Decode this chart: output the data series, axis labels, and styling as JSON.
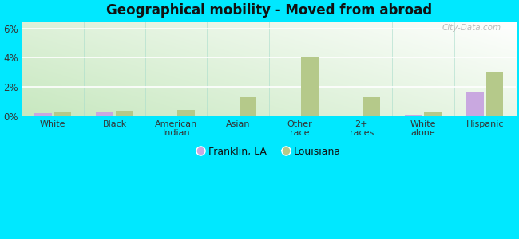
{
  "title": "Geographical mobility - Moved from abroad",
  "categories": [
    "White",
    "Black",
    "American\nIndian",
    "Asian",
    "Other\nrace",
    "2+\nraces",
    "White\nalone",
    "Hispanic"
  ],
  "franklin_values": [
    0.2,
    0.3,
    0.0,
    0.0,
    0.0,
    0.0,
    0.1,
    1.7
  ],
  "louisiana_values": [
    0.35,
    0.4,
    0.45,
    1.3,
    4.05,
    1.3,
    0.3,
    3.0
  ],
  "franklin_color": "#c9a8e0",
  "louisiana_color": "#b5c98a",
  "outer_bg": "#00e8ff",
  "bg_top_left": "#c8e8c0",
  "bg_bottom_right": "#f0f8ee",
  "ylim": [
    0,
    6.5
  ],
  "yticks": [
    0,
    2,
    4,
    6
  ],
  "ytick_labels": [
    "0%",
    "2%",
    "4%",
    "6%"
  ],
  "bar_width": 0.28,
  "legend_franklin": "Franklin, LA",
  "legend_louisiana": "Louisiana",
  "watermark": "City-Data.com"
}
